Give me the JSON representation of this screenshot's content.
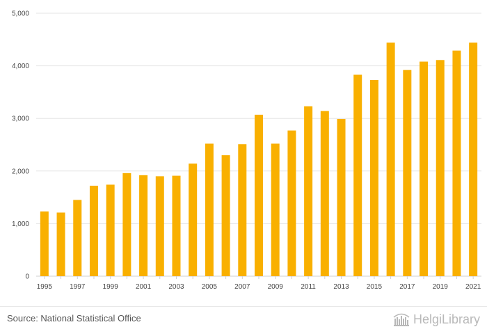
{
  "chart_data": {
    "type": "bar",
    "title": "",
    "xlabel": "",
    "ylabel": "",
    "ylim": [
      0,
      5000
    ],
    "yticks": [
      "0",
      "1,000",
      "2,000",
      "3,000",
      "4,000",
      "5,000"
    ],
    "ytick_values": [
      0,
      1000,
      2000,
      3000,
      4000,
      5000
    ],
    "categories": [
      "1995",
      "1996",
      "1997",
      "1998",
      "1999",
      "2000",
      "2001",
      "2002",
      "2003",
      "2004",
      "2005",
      "2006",
      "2007",
      "2008",
      "2009",
      "2010",
      "2011",
      "2012",
      "2013",
      "2014",
      "2015",
      "2016",
      "2017",
      "2018",
      "2019",
      "2020",
      "2021"
    ],
    "xtick_labels": [
      "1995",
      "",
      "1997",
      "",
      "1999",
      "",
      "2001",
      "",
      "2003",
      "",
      "2005",
      "",
      "2007",
      "",
      "2009",
      "",
      "2011",
      "",
      "2013",
      "",
      "2015",
      "",
      "2017",
      "",
      "2019",
      "",
      "2021"
    ],
    "values": [
      1230,
      1210,
      1450,
      1720,
      1740,
      1960,
      1920,
      1900,
      1910,
      2140,
      2520,
      2300,
      2510,
      3070,
      2520,
      2770,
      3230,
      3140,
      2990,
      3830,
      3730,
      4440,
      3920,
      4080,
      4110,
      4290,
      4440
    ],
    "grid": true,
    "bar_color": "#f9b000"
  },
  "footer": {
    "source": "Source: National Statistical Office",
    "brand": "HelgiLibrary"
  }
}
